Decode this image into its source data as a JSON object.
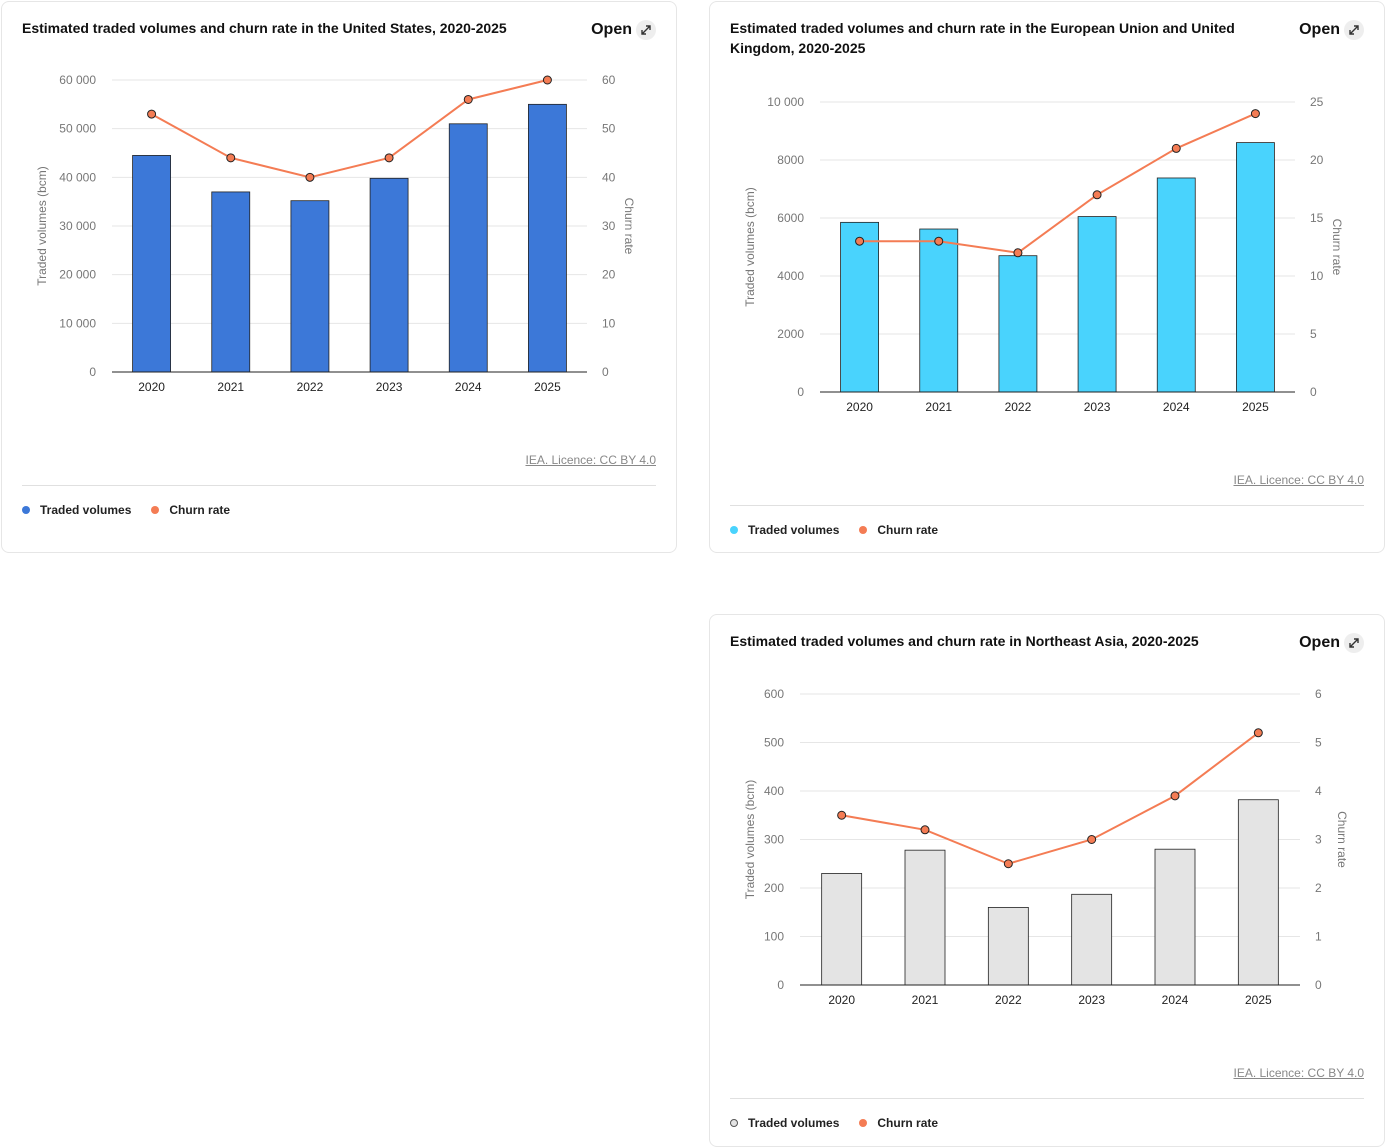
{
  "cards": [
    {
      "title": "Estimated traded volumes and churn rate in the United States, 2020-2025",
      "open_label": "Open",
      "licence": "IEA. Licence: CC BY 4.0",
      "legend": [
        {
          "label": "Traded volumes",
          "color": "#3c78d8"
        },
        {
          "label": "Churn rate",
          "color": "#f47c54"
        }
      ]
    },
    {
      "title": "Estimated traded volumes and churn rate in the European Union and United Kingdom, 2020-2025",
      "open_label": "Open",
      "licence": "IEA. Licence: CC BY 4.0",
      "legend": [
        {
          "label": "Traded volumes",
          "color": "#49d3fd"
        },
        {
          "label": "Churn rate",
          "color": "#f47c54"
        }
      ]
    },
    {
      "title": "Estimated traded volumes and churn rate in Northeast Asia, 2020-2025",
      "open_label": "Open",
      "licence": "IEA. Licence: CC BY 4.0",
      "legend": [
        {
          "label": "Traded volumes",
          "color": "#e4e4e4"
        },
        {
          "label": "Churn rate",
          "color": "#f47c54"
        }
      ]
    }
  ],
  "chart_data": [
    {
      "type": "bar",
      "title": "Estimated traded volumes and churn rate in the United States, 2020-2025",
      "categories": [
        "2020",
        "2021",
        "2022",
        "2023",
        "2024",
        "2025"
      ],
      "series": [
        {
          "name": "Traded volumes",
          "type": "bar",
          "axis": "left",
          "color": "#3c78d8",
          "values": [
            44500,
            37000,
            35200,
            39800,
            51000,
            55000
          ]
        },
        {
          "name": "Churn rate",
          "type": "line",
          "axis": "right",
          "color": "#f47c54",
          "values": [
            53,
            44,
            40,
            44,
            56,
            60
          ]
        }
      ],
      "ylabel": "Traded volumes (bcm)",
      "y2label": "Churn rate",
      "ylim": [
        0,
        60000
      ],
      "y2lim": [
        0,
        60
      ],
      "yticks": [
        "0",
        "10 000",
        "20 000",
        "30 000",
        "40 000",
        "50 000",
        "60 000"
      ],
      "y2ticks": [
        "0",
        "10",
        "20",
        "30",
        "40",
        "50",
        "60"
      ]
    },
    {
      "type": "bar",
      "title": "Estimated traded volumes and churn rate in the European Union and United Kingdom, 2020-2025",
      "categories": [
        "2020",
        "2021",
        "2022",
        "2023",
        "2024",
        "2025"
      ],
      "series": [
        {
          "name": "Traded volumes",
          "type": "bar",
          "axis": "left",
          "color": "#49d3fd",
          "values": [
            5850,
            5620,
            4700,
            6050,
            7380,
            8600
          ]
        },
        {
          "name": "Churn rate",
          "type": "line",
          "axis": "right",
          "color": "#f47c54",
          "values": [
            13,
            13,
            12,
            17,
            21,
            24
          ]
        }
      ],
      "ylabel": "Traded volumes (bcm)",
      "y2label": "Churn rate",
      "ylim": [
        0,
        10000
      ],
      "y2lim": [
        0,
        25
      ],
      "yticks": [
        "0",
        "2000",
        "4000",
        "6000",
        "8000",
        "10 000"
      ],
      "y2ticks": [
        "0",
        "5",
        "10",
        "15",
        "20",
        "25"
      ]
    },
    {
      "type": "bar",
      "title": "Estimated traded volumes and churn rate in Northeast Asia, 2020-2025",
      "categories": [
        "2020",
        "2021",
        "2022",
        "2023",
        "2024",
        "2025"
      ],
      "series": [
        {
          "name": "Traded volumes",
          "type": "bar",
          "axis": "left",
          "color": "#e4e4e4",
          "values": [
            230,
            278,
            160,
            187,
            280,
            382
          ]
        },
        {
          "name": "Churn rate",
          "type": "line",
          "axis": "right",
          "color": "#f47c54",
          "values": [
            3.5,
            3.2,
            2.5,
            3.0,
            3.9,
            5.2
          ]
        }
      ],
      "ylabel": "Traded volumes (bcm)",
      "y2label": "Churn rate",
      "ylim": [
        0,
        600
      ],
      "y2lim": [
        0,
        6
      ],
      "yticks": [
        "0",
        "100",
        "200",
        "300",
        "400",
        "500",
        "600"
      ],
      "y2ticks": [
        "0",
        "1",
        "2",
        "3",
        "4",
        "5",
        "6"
      ]
    }
  ]
}
